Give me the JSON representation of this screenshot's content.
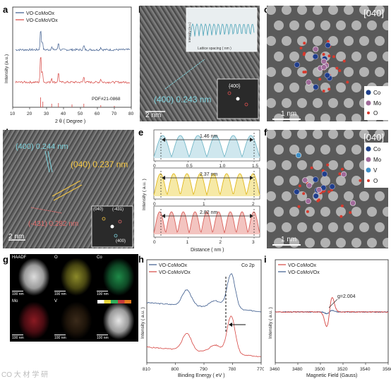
{
  "labels": {
    "a": "a",
    "b": "b",
    "c": "c",
    "d": "d",
    "e": "e",
    "f": "f",
    "g": "g",
    "h": "h",
    "i": "i"
  },
  "panel_a": {
    "legend": [
      "VO-CoMoOx",
      "VO-CoMoVOx"
    ],
    "legend_colors": [
      "#3b5a8c",
      "#d64541"
    ],
    "ylabel": "Intensity (a.u.)",
    "xlabel": "2 θ ( Degree )",
    "x_ticks": [
      "10",
      "20",
      "30",
      "40",
      "50",
      "60",
      "70",
      "80"
    ],
    "pdf_label": "PDF#21-0868"
  },
  "panel_b": {
    "lattice_label": "(400) 0.243 nm",
    "scale": "2 nm",
    "fft_label": "{400}",
    "inset_ylabel": "Intensity (a.u.)",
    "inset_xlabel": "Lattice spacing ( nm )"
  },
  "panel_c": {
    "zone": "[040]",
    "scale": "1 nm",
    "legend": [
      "Co",
      "Mo",
      "O"
    ]
  },
  "panel_d": {
    "label_1": "(400) 0.244 nm",
    "label_2": "(040) 0.237 nm",
    "label_3": "(-431) 0.282 nm",
    "scale": "2 nm",
    "fft_labels": [
      "(040)",
      "(-431)",
      "(400)"
    ]
  },
  "panel_e": {
    "ylabel": "Intensity ( a.u. )",
    "xlabel": "Distance ( nm )",
    "sub": [
      {
        "measure": "1.46 nm",
        "ticks": [
          "0",
          "0.5",
          "1.0",
          "1.5"
        ],
        "color": "#74b7c7",
        "fill": "#cfe7ee"
      },
      {
        "measure": "2.37 nm",
        "ticks": [
          "0",
          "1",
          "2"
        ],
        "color": "#e0b81e",
        "fill": "#f6e9a6"
      },
      {
        "measure": "2.82 nm",
        "ticks": [
          "0",
          "1",
          "2",
          "3"
        ],
        "color": "#d9625c",
        "fill": "#f3c4c0"
      }
    ]
  },
  "panel_f": {
    "zone": "[040]",
    "scale": "1 nm",
    "legend": [
      "Co",
      "Mo",
      "V",
      "O"
    ]
  },
  "panel_g": {
    "maps": [
      {
        "title": "HAADF",
        "scale": "100 nm"
      },
      {
        "title": "O",
        "scale": "100 nm"
      },
      {
        "title": "Co",
        "scale": "100 nm"
      },
      {
        "title": "Mo",
        "scale": "100 nm"
      },
      {
        "title": "V",
        "scale": "100 nm"
      },
      {
        "title": "",
        "scale": "100 nm"
      }
    ]
  },
  "panel_h": {
    "legend": [
      "VO-CoMoOx",
      "VO-CoMoVOx"
    ],
    "element": "Co 2p",
    "ylabel": "Intensity ( a.u. )",
    "xlabel": "Binding Energy ( eV )",
    "x_ticks": [
      "810",
      "800",
      "790",
      "780",
      "770"
    ]
  },
  "panel_i": {
    "legend": [
      "VO-CoMoOx",
      "VO-CoMoVOx"
    ],
    "g_label": "g=2.004",
    "ylabel": "Intensity ( a.u. )",
    "xlabel": "Magnetic Field (Gauss)",
    "x_ticks": [
      "3460",
      "3480",
      "3500",
      "3520",
      "3540",
      "3560"
    ]
  },
  "watermark": "CO 大 材 学 研"
}
